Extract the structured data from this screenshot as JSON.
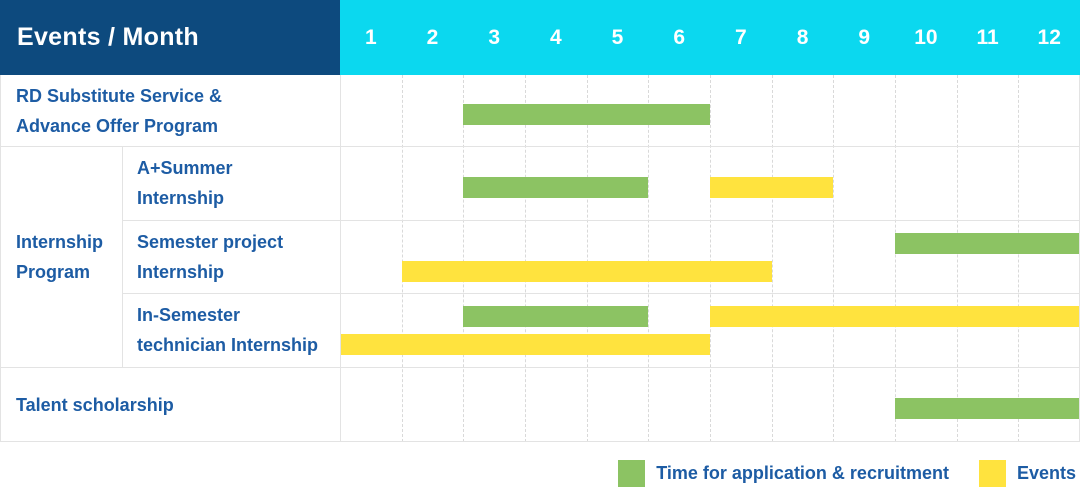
{
  "title": "Events / Month",
  "months": [
    "1",
    "2",
    "3",
    "4",
    "5",
    "6",
    "7",
    "8",
    "9",
    "10",
    "11",
    "12"
  ],
  "colors": {
    "header_bg": "#0D4A7E",
    "months_bg": "#0BD8EF",
    "green_bar": "#8CC363",
    "yellow_bar": "#FFE33E",
    "label_text": "#1D5CA4"
  },
  "group": {
    "label_lines": [
      "Internship",
      "Program"
    ]
  },
  "rows": [
    {
      "label_lines": [
        "RD Substitute Service &",
        "Advance Offer Program"
      ],
      "group": "",
      "lines": [
        [
          {
            "color": "green",
            "start": 3,
            "end": 6
          }
        ]
      ]
    },
    {
      "label_lines": [
        "A+Summer",
        "Internship"
      ],
      "group": "Internship Program",
      "lines": [
        [
          {
            "color": "green",
            "start": 3,
            "end": 5
          },
          {
            "color": "yellow",
            "start": 7,
            "end": 8
          }
        ]
      ]
    },
    {
      "label_lines": [
        "Semester project",
        "Internship"
      ],
      "group": "Internship Program",
      "lines": [
        [
          {
            "color": "green",
            "start": 10,
            "end": 12
          }
        ],
        [
          {
            "color": "yellow",
            "start": 2,
            "end": 7
          }
        ]
      ]
    },
    {
      "label_lines": [
        "In-Semester",
        "technician Internship"
      ],
      "group": "Internship Program",
      "lines": [
        [
          {
            "color": "green",
            "start": 3,
            "end": 5
          },
          {
            "color": "yellow",
            "start": 7,
            "end": 12
          }
        ],
        [
          {
            "color": "yellow",
            "start": 1,
            "end": 6
          }
        ]
      ]
    },
    {
      "label_lines": [
        "Talent scholarship"
      ],
      "group": "",
      "lines": [
        [
          {
            "color": "green",
            "start": 10,
            "end": 12
          }
        ]
      ]
    }
  ],
  "legend": [
    {
      "swatch": "green",
      "label": "Time for application & recruitment"
    },
    {
      "swatch": "yellow",
      "label": "Events"
    }
  ],
  "chart_data": {
    "type": "bar",
    "subtype": "gantt-timeline",
    "title": "Events / Month",
    "x": {
      "label": "Month",
      "ticks": [
        1,
        2,
        3,
        4,
        5,
        6,
        7,
        8,
        9,
        10,
        11,
        12
      ],
      "range": [
        1,
        12
      ]
    },
    "categories": [
      "RD Substitute Service & Advance Offer Program",
      "A+Summer Internship",
      "Semester project Internship",
      "In-Semester technician Internship",
      "Talent scholarship"
    ],
    "category_groups": {
      "A+Summer Internship": "Internship Program",
      "Semester project Internship": "Internship Program",
      "In-Semester technician Internship": "Internship Program"
    },
    "series": [
      {
        "name": "Time for application & recruitment",
        "color": "#8CC363",
        "spans": [
          {
            "category": "RD Substitute Service & Advance Offer Program",
            "start_month": 3,
            "end_month": 6
          },
          {
            "category": "A+Summer Internship",
            "start_month": 3,
            "end_month": 5
          },
          {
            "category": "Semester project Internship",
            "start_month": 10,
            "end_month": 12
          },
          {
            "category": "In-Semester technician Internship",
            "start_month": 3,
            "end_month": 5
          },
          {
            "category": "Talent scholarship",
            "start_month": 10,
            "end_month": 12
          }
        ]
      },
      {
        "name": "Events",
        "color": "#FFE33E",
        "spans": [
          {
            "category": "A+Summer Internship",
            "start_month": 7,
            "end_month": 8
          },
          {
            "category": "Semester project Internship",
            "start_month": 2,
            "end_month": 7
          },
          {
            "category": "In-Semester technician Internship",
            "start_month": 7,
            "end_month": 12
          },
          {
            "category": "In-Semester technician Internship",
            "start_month": 1,
            "end_month": 6
          }
        ]
      }
    ],
    "grid": true,
    "legend_position": "bottom-right"
  }
}
